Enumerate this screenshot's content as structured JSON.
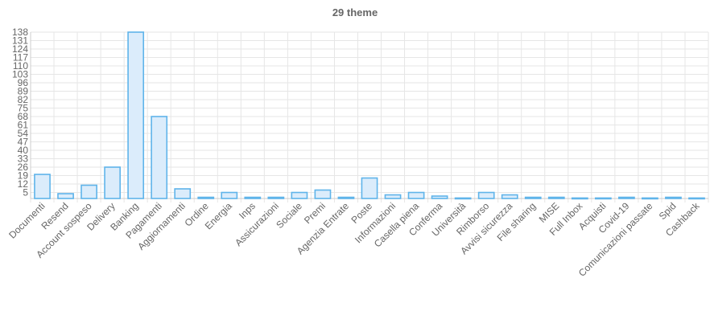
{
  "chart_data": {
    "type": "bar",
    "title": "29 theme",
    "xlabel": "",
    "ylabel": "",
    "categories": [
      "Documenti",
      "Resend",
      "Account sospeso",
      "Delivery",
      "Banking",
      "Pagamenti",
      "Aggiornamenti",
      "Ordine",
      "Energia",
      "Inps",
      "Assicurazioni",
      "Sociale",
      "Premi",
      "Agenzia Entrate",
      "Poste",
      "Informazioni",
      "Casella piena",
      "Conferma",
      "Università",
      "Rimborso",
      "Avvisi sicurezza",
      "File sharing",
      "MISE",
      "Full Inbox",
      "Acquisti",
      "Covid-19",
      "Comunicazioni passate",
      "Spid",
      "Cashback"
    ],
    "values": [
      20,
      4,
      11,
      26,
      138,
      68,
      8,
      1,
      5,
      1,
      1,
      5,
      7,
      1,
      17,
      3,
      5,
      2,
      0,
      5,
      3,
      1,
      1,
      0,
      0,
      1,
      0,
      1,
      0
    ],
    "yticks": [
      5,
      12,
      19,
      26,
      33,
      40,
      47,
      54,
      61,
      68,
      75,
      82,
      89,
      96,
      103,
      110,
      117,
      124,
      131,
      138
    ],
    "ylim": [
      0,
      138
    ],
    "grid": true,
    "bar_fill": "#dbecfb",
    "bar_stroke": "#5fb4ea",
    "grid_color": "#e6e6e6",
    "text_color": "#666666"
  }
}
